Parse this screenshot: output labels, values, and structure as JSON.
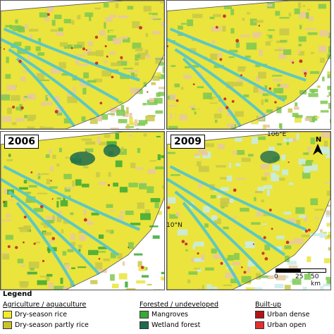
{
  "panels": [
    {
      "id": "p1",
      "year": ""
    },
    {
      "id": "p2",
      "year": ""
    },
    {
      "id": "p3",
      "year": "2006"
    },
    {
      "id": "p4",
      "year": "2009"
    }
  ],
  "coords": {
    "lon_label": "106°E",
    "lat_label": "10°N"
  },
  "north_label": "N",
  "scale": {
    "ticks": [
      "0",
      "25",
      "50 km"
    ]
  },
  "legend": {
    "title": "Legend",
    "groups": [
      {
        "title": "Agriculture / aquaculture",
        "items": [
          {
            "label": "Dry-season rice",
            "color": "#f2ec2a"
          },
          {
            "label": "Dry-season partly rice",
            "color": "#c9c428"
          }
        ]
      },
      {
        "title": "Forested / undeveloped",
        "items": [
          {
            "label": "Mangroves",
            "color": "#3aa935"
          },
          {
            "label": "Wetland forest",
            "color": "#1f6b4e"
          }
        ]
      },
      {
        "title": "Built-up",
        "items": [
          {
            "label": "Urban dense",
            "color": "#b41414"
          },
          {
            "label": "Urban open",
            "color": "#e23030"
          }
        ]
      }
    ]
  },
  "colors": {
    "rice": "#eae43c",
    "partly_rice": "#c8c848",
    "green": "#7ec850",
    "mangrove": "#3aa935",
    "river": "#5ec8c0",
    "wetland": "#1f6b4e",
    "urban": "#c83a2a",
    "bare": "#e8c8a0",
    "water_pale": "#c8ecea"
  }
}
